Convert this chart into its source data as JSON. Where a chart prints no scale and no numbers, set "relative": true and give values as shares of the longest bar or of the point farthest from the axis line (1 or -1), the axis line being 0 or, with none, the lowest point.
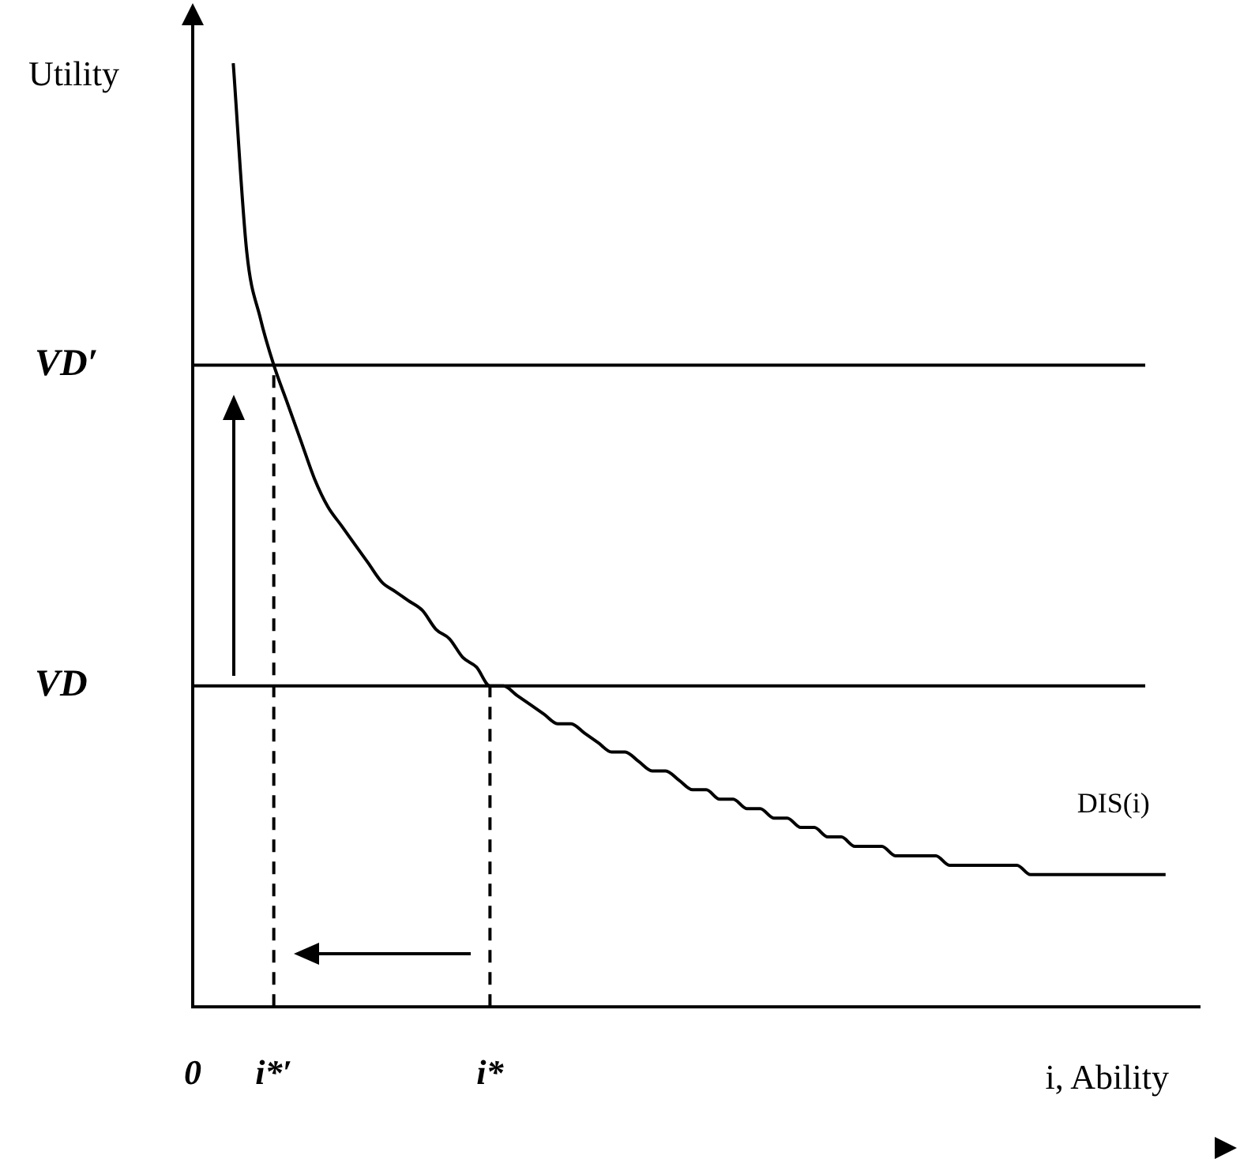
{
  "chart_data": {
    "type": "line",
    "relative": true,
    "xlabel": "i, Ability",
    "ylabel": "Utility",
    "categories": [
      "0",
      null,
      null,
      null,
      null,
      null,
      "i*′",
      null,
      null,
      null,
      null,
      null,
      null,
      null,
      null,
      null,
      null,
      null,
      null,
      null,
      null,
      null,
      "i*",
      null,
      null,
      null,
      null,
      null,
      null,
      null,
      null,
      null,
      null,
      null,
      null,
      null,
      null,
      null,
      null,
      null,
      null,
      null,
      null,
      null,
      null,
      null,
      null,
      null,
      null,
      null,
      null,
      null,
      null,
      null,
      null,
      null,
      null,
      null,
      null,
      null,
      null,
      null,
      null,
      null,
      null,
      null,
      null,
      null,
      null,
      null,
      null,
      null,
      null,
      null,
      null
    ],
    "series": [
      {
        "name": "DIS(i)",
        "color": "#000000",
        "values": [
          null,
          null,
          null,
          1.0,
          0.8,
          0.73,
          0.68,
          0.64,
          0.6,
          0.56,
          0.53,
          0.51,
          0.49,
          0.47,
          0.45,
          0.44,
          0.43,
          0.42,
          0.4,
          0.39,
          0.37,
          0.36,
          0.34,
          0.34,
          0.33,
          0.32,
          0.31,
          0.3,
          0.3,
          0.29,
          0.28,
          0.27,
          0.27,
          0.26,
          0.25,
          0.25,
          0.24,
          0.23,
          0.23,
          0.22,
          0.22,
          0.21,
          0.21,
          0.2,
          0.2,
          0.19,
          0.19,
          0.18,
          0.18,
          0.17,
          0.17,
          0.17,
          0.16,
          0.16,
          0.16,
          0.16,
          0.15,
          0.15,
          0.15,
          0.15,
          0.15,
          0.15,
          0.14,
          0.14,
          0.14,
          0.14,
          0.14,
          0.14,
          0.14,
          0.14,
          0.14,
          0.14,
          0.14,
          null,
          null
        ]
      }
    ],
    "ref_lines": [
      {
        "axis": "y",
        "value": 0.68,
        "label": "VD′",
        "color": "#000000",
        "line_style": "solid"
      },
      {
        "axis": "y",
        "value": 0.34,
        "label": "VD",
        "color": "#000000",
        "line_style": "solid"
      },
      {
        "axis": "x",
        "value": "i*′",
        "color": "#000000",
        "line_style": "dashed"
      },
      {
        "axis": "x",
        "value": "i*",
        "color": "#000000",
        "line_style": "dashed"
      }
    ],
    "marker": "none",
    "line_style": "solid",
    "grid": false,
    "legend": false
  }
}
